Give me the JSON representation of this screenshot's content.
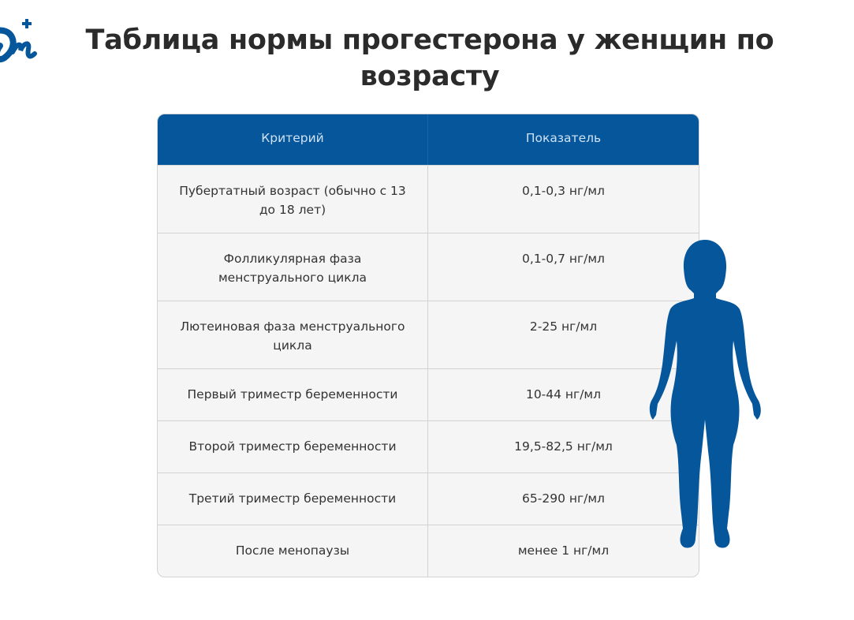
{
  "title": "Таблица нормы прогестерона у женщин по возрасту",
  "colors": {
    "accent": "#05569b",
    "header_text": "#cfe2f5",
    "row_bg": "#f5f5f5"
  },
  "table": {
    "headers": [
      "Критерий",
      "Показатель"
    ],
    "rows": [
      [
        "Пубертатный возраст (обычно с 13 до 18 лет)",
        "0,1-0,3 нг/мл"
      ],
      [
        "Фолликулярная фаза менструального цикла",
        "0,1-0,7 нг/мл"
      ],
      [
        "Лютеиновая фаза менструального цикла",
        "2-25 нг/мл"
      ],
      [
        "Первый триместр беременности",
        "10-44 нг/мл"
      ],
      [
        "Второй триместр беременности",
        "19,5-82,5 нг/мл"
      ],
      [
        "Третий триместр беременности",
        "65-290 нг/мл"
      ],
      [
        "После менопаузы",
        "менее 1 нг/мл"
      ]
    ]
  },
  "icons": {
    "logo": "brand-logo",
    "figure": "woman-silhouette"
  }
}
